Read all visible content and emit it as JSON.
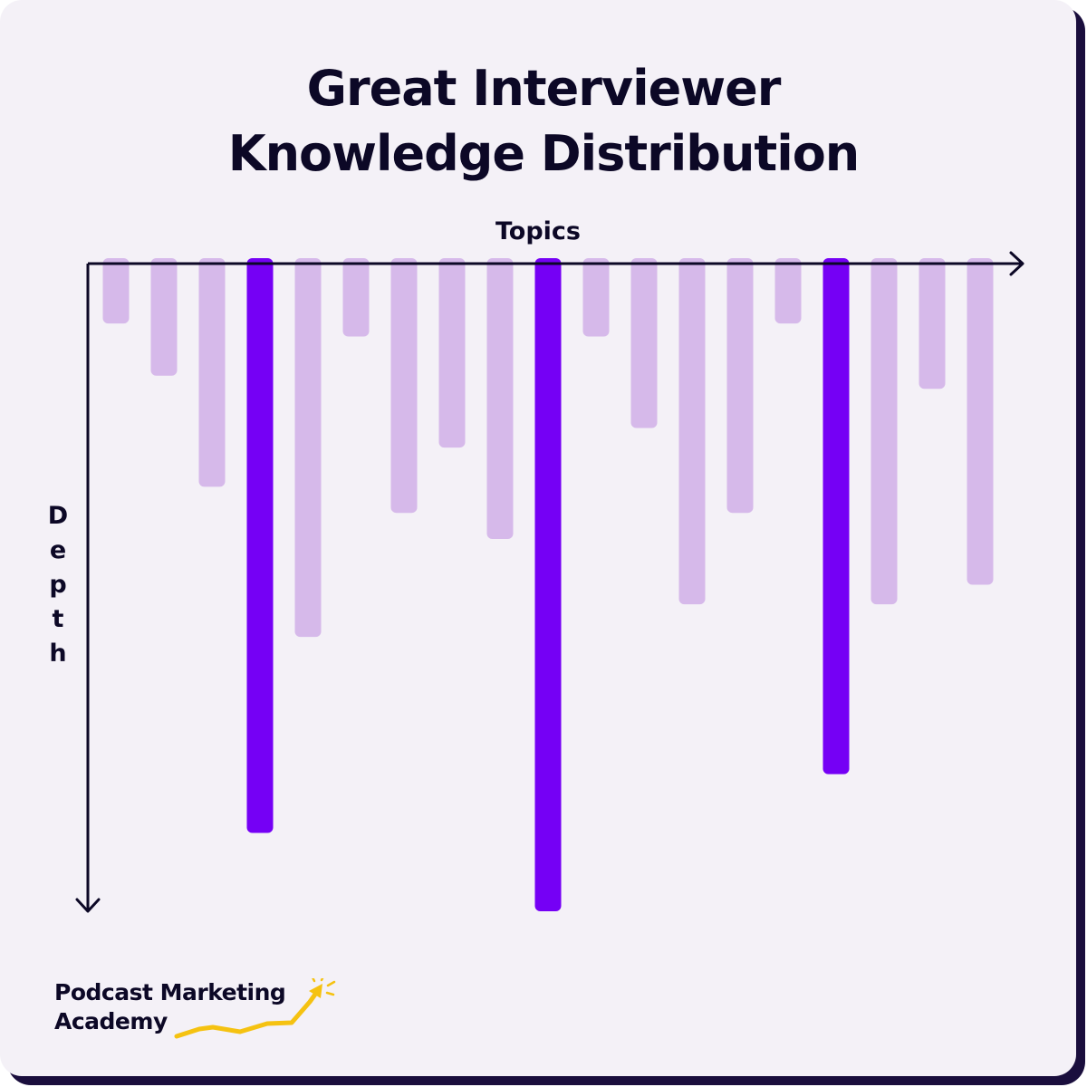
{
  "colors": {
    "background": "#f4f1f7",
    "highlight_bar": "#7500f5",
    "muted_bar": "#d6b9ea",
    "axis": "#0c0826",
    "logo_accent": "#f5c211"
  },
  "logo": {
    "line1": "Podcast Marketing",
    "line2": "Academy"
  },
  "chart_data": {
    "type": "bar",
    "orientation": "downward",
    "title": "Great Interviewer Knowledge Distribution",
    "title_lines": [
      "Great Interviewer",
      "Knowledge Distribution"
    ],
    "xlabel": "Topics",
    "ylabel": "Depth",
    "ylim": [
      0,
      100
    ],
    "grid": false,
    "legend": "none",
    "categories": [
      "",
      "",
      "",
      "",
      "",
      "",
      "",
      "",
      "",
      "",
      "",
      "",
      "",
      "",
      "",
      "",
      "",
      "",
      ""
    ],
    "values": [
      10,
      18,
      35,
      88,
      58,
      12,
      39,
      29,
      43,
      100,
      12,
      26,
      53,
      39,
      10,
      79,
      53,
      20,
      50
    ],
    "highlighted": [
      false,
      false,
      false,
      true,
      false,
      false,
      false,
      false,
      false,
      true,
      false,
      false,
      false,
      false,
      false,
      true,
      false,
      false,
      false
    ]
  }
}
